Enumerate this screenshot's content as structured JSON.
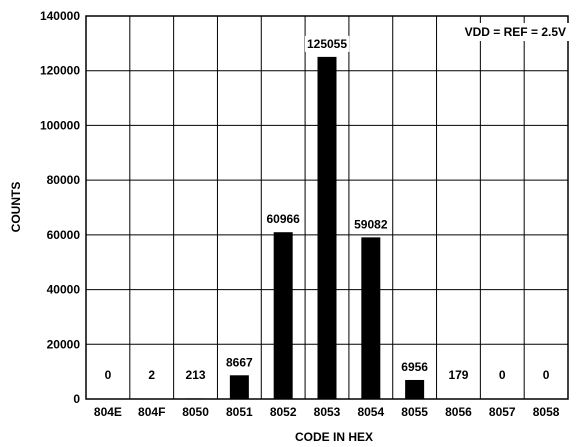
{
  "chart_data": {
    "type": "bar",
    "title": "",
    "annotation": "VDD = REF = 2.5V",
    "xlabel": "CODE IN HEX",
    "ylabel": "COUNTS",
    "categories": [
      "804E",
      "804F",
      "8050",
      "8051",
      "8052",
      "8053",
      "8054",
      "8055",
      "8056",
      "8057",
      "8058"
    ],
    "values": [
      0,
      2,
      213,
      8667,
      60966,
      125055,
      59082,
      6956,
      179,
      0,
      0
    ],
    "data_labels": [
      "0",
      "2",
      "213",
      "8667",
      "60966",
      "125055",
      "59082",
      "6956",
      "179",
      "0",
      "0"
    ],
    "ylim": [
      0,
      140000
    ],
    "yticks": [
      0,
      20000,
      40000,
      60000,
      80000,
      100000,
      120000,
      140000
    ],
    "ytick_labels": [
      "0",
      "20000",
      "40000",
      "60000",
      "80000",
      "100000",
      "120000",
      "140000"
    ],
    "grid": true,
    "bar_color": "#000000"
  }
}
